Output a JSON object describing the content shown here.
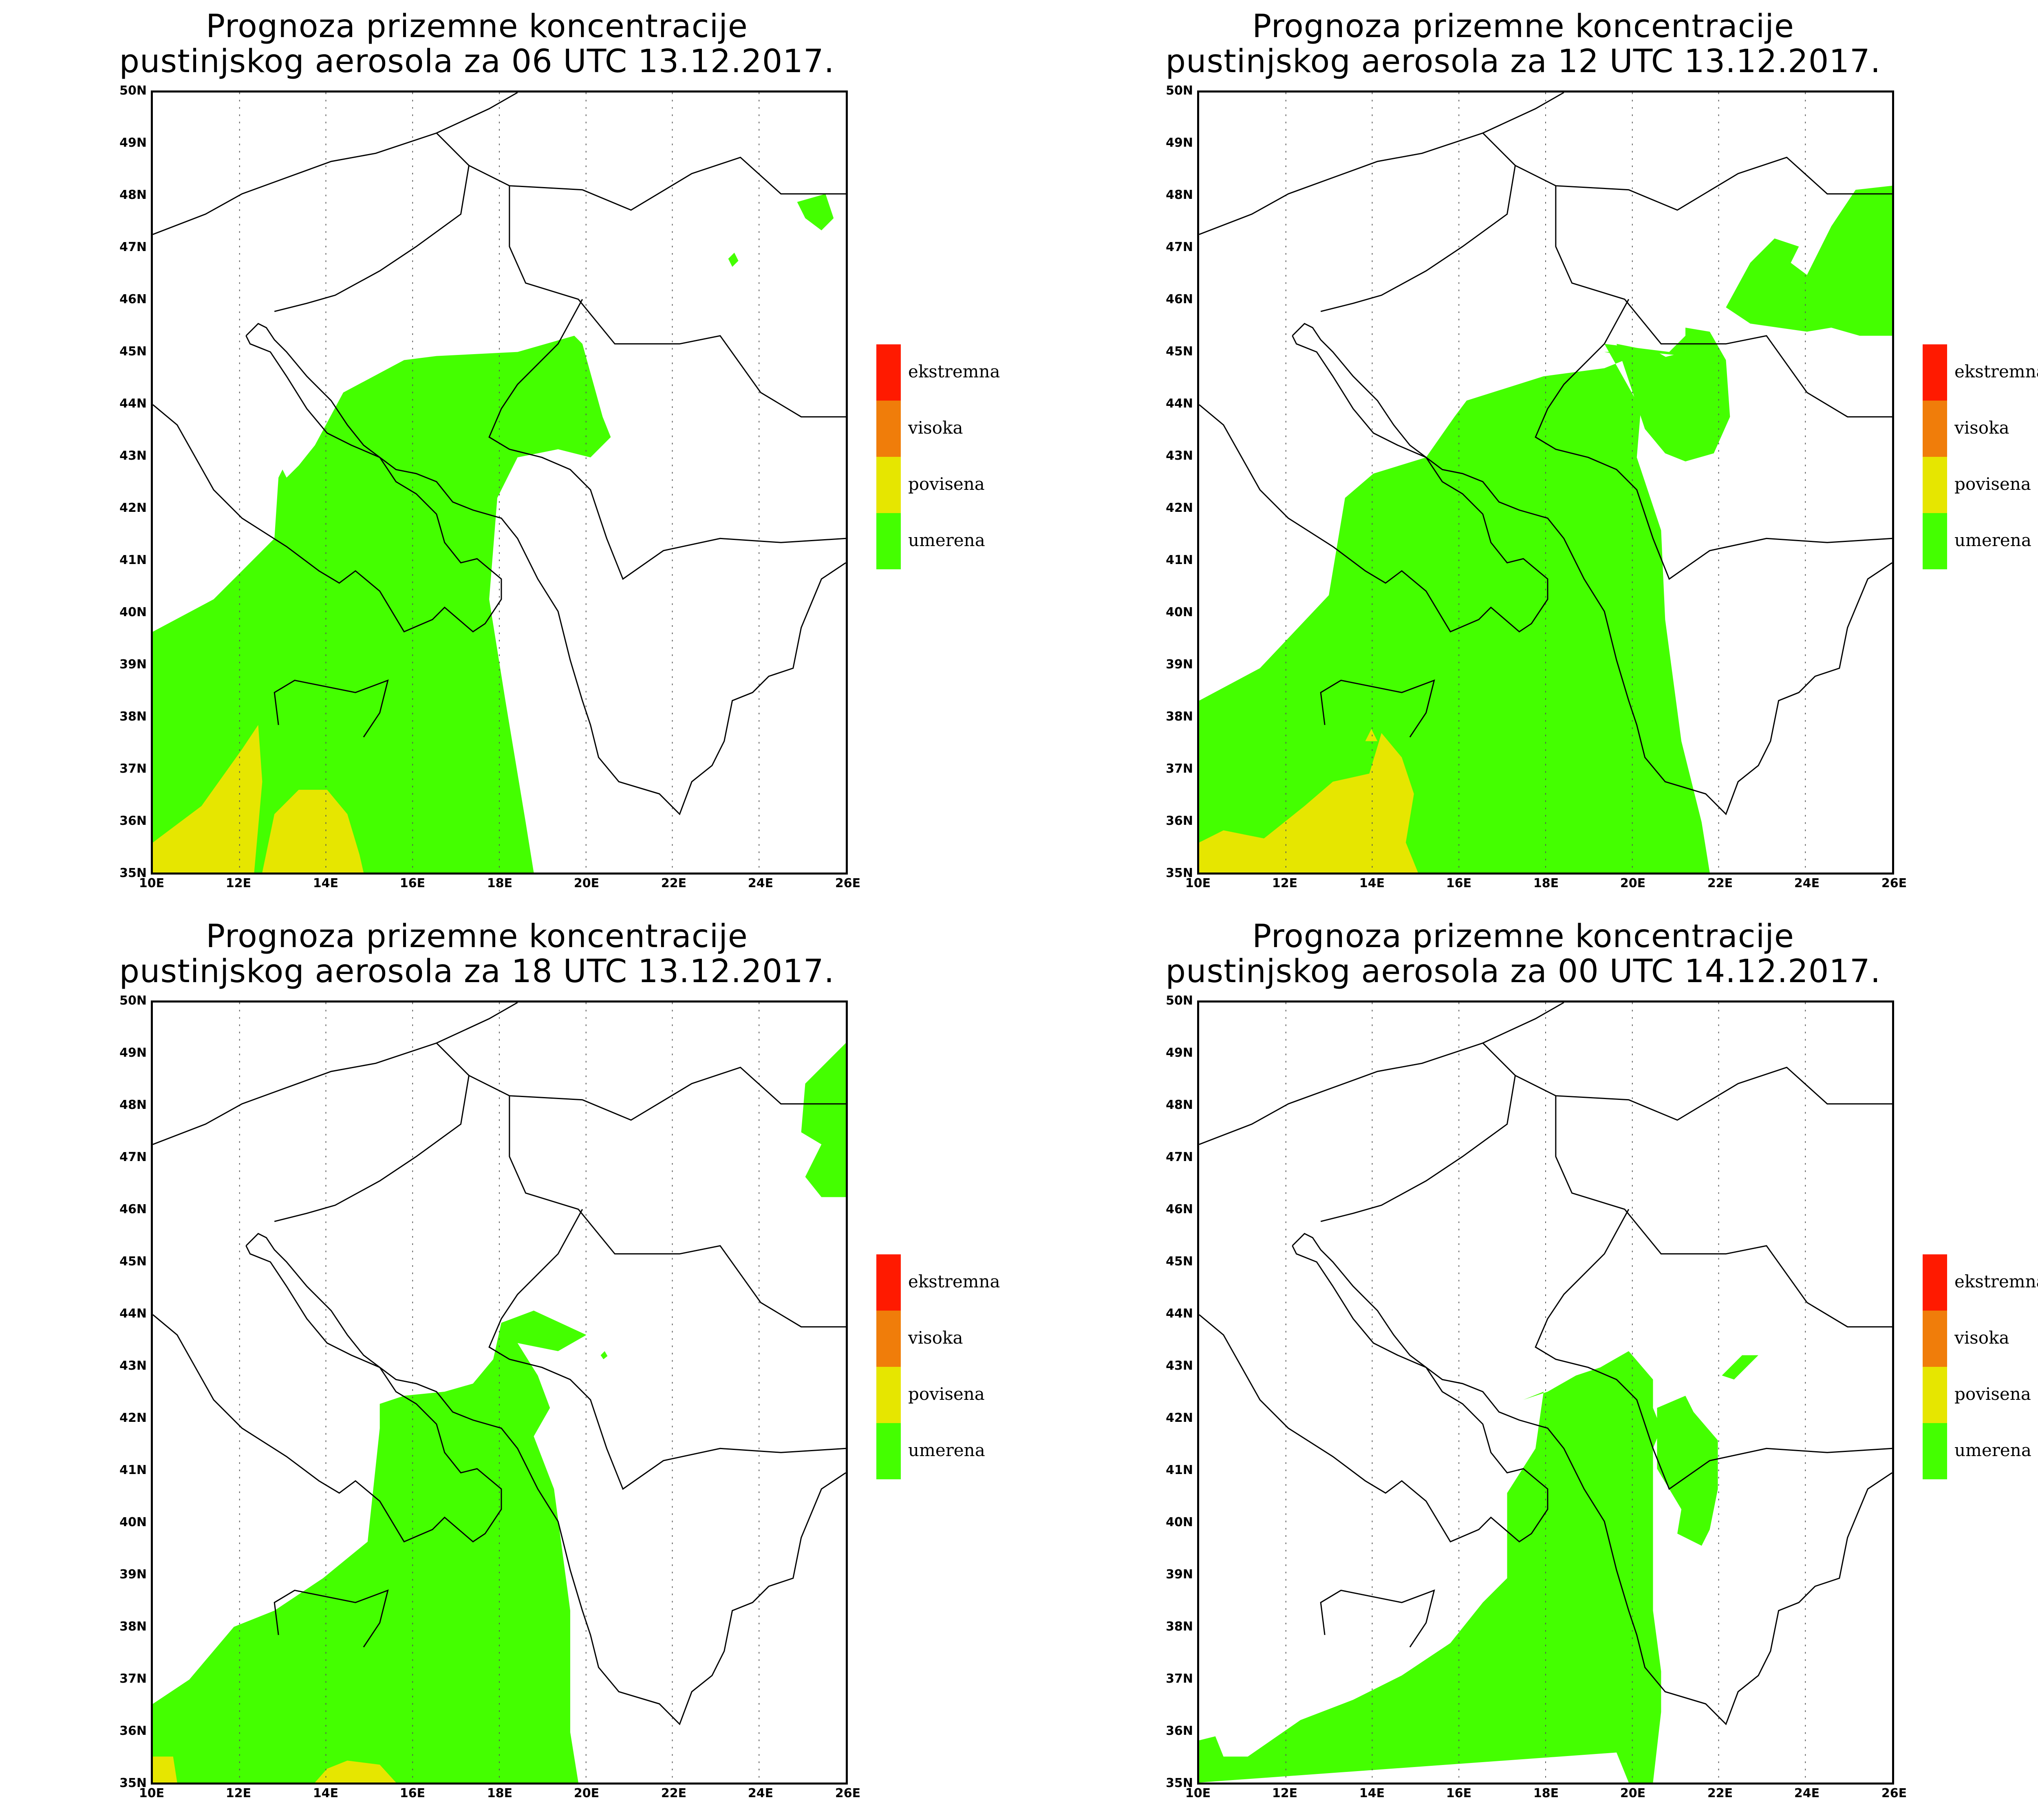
{
  "panels": [
    {
      "title_line1": "Prognoza prizemne koncentracije",
      "title_line2": "pustinjskog aerosola za 06 UTC 13.12.2017."
    },
    {
      "title_line1": "Prognoza prizemne koncentracije",
      "title_line2": "pustinjskog aerosola za 12 UTC 13.12.2017."
    },
    {
      "title_line1": "Prognoza prizemne koncentracije",
      "title_line2": "pustinjskog aerosola za 18 UTC 13.12.2017."
    },
    {
      "title_line1": "Prognoza prizemne koncentracije",
      "title_line2": "pustinjskog aerosola za 00 UTC 14.12.2017."
    }
  ],
  "axes": {
    "lat_labels": [
      "50N",
      "49N",
      "48N",
      "47N",
      "46N",
      "45N",
      "44N",
      "43N",
      "42N",
      "41N",
      "40N",
      "39N",
      "38N",
      "37N",
      "36N",
      "35N"
    ],
    "lon_labels": [
      "10E",
      "12E",
      "14E",
      "16E",
      "18E",
      "20E",
      "22E",
      "24E",
      "26E"
    ],
    "lat_range": [
      35,
      50
    ],
    "lon_range": [
      10,
      26
    ]
  },
  "legend": [
    {
      "label": "ekstremna",
      "color": "#ff1a00"
    },
    {
      "label": "visoka",
      "color": "#f07d0a"
    },
    {
      "label": "povisena",
      "color": "#e6e600"
    },
    {
      "label": "umerena",
      "color": "#44ff00"
    }
  ]
}
